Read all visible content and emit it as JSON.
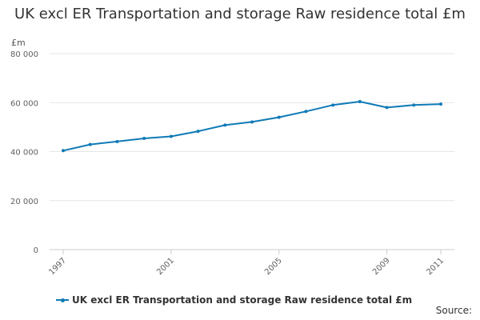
{
  "chart_data": {
    "type": "line",
    "title": "UK excl ER Transportation and storage Raw residence total £m",
    "ylabel": "£m",
    "xlabel": "",
    "ylim": [
      0,
      80000
    ],
    "yticks": [
      0,
      20000,
      40000,
      60000,
      80000
    ],
    "ytick_labels": [
      "0",
      "20 000",
      "40 000",
      "60 000",
      "80 000"
    ],
    "xlim": [
      1997,
      2011
    ],
    "xticks": [
      1997,
      2001,
      2005,
      2009,
      2011
    ],
    "xtick_labels": [
      "1997",
      "2001",
      "2005",
      "2009",
      "2011"
    ],
    "grid": true,
    "legend_position": "bottom-left",
    "series": [
      {
        "name": "UK excl ER Transportation and storage Raw residence total £m",
        "color": "#0f7ab7",
        "x": [
          1997,
          1998,
          1999,
          2000,
          2001,
          2002,
          2003,
          2004,
          2005,
          2006,
          2007,
          2008,
          2009,
          2010,
          2011
        ],
        "values": [
          40400,
          42900,
          44100,
          45400,
          46200,
          48300,
          50800,
          52100,
          54000,
          56400,
          59000,
          60400,
          58000,
          59000,
          59400
        ]
      }
    ]
  },
  "source_label": "Source:"
}
